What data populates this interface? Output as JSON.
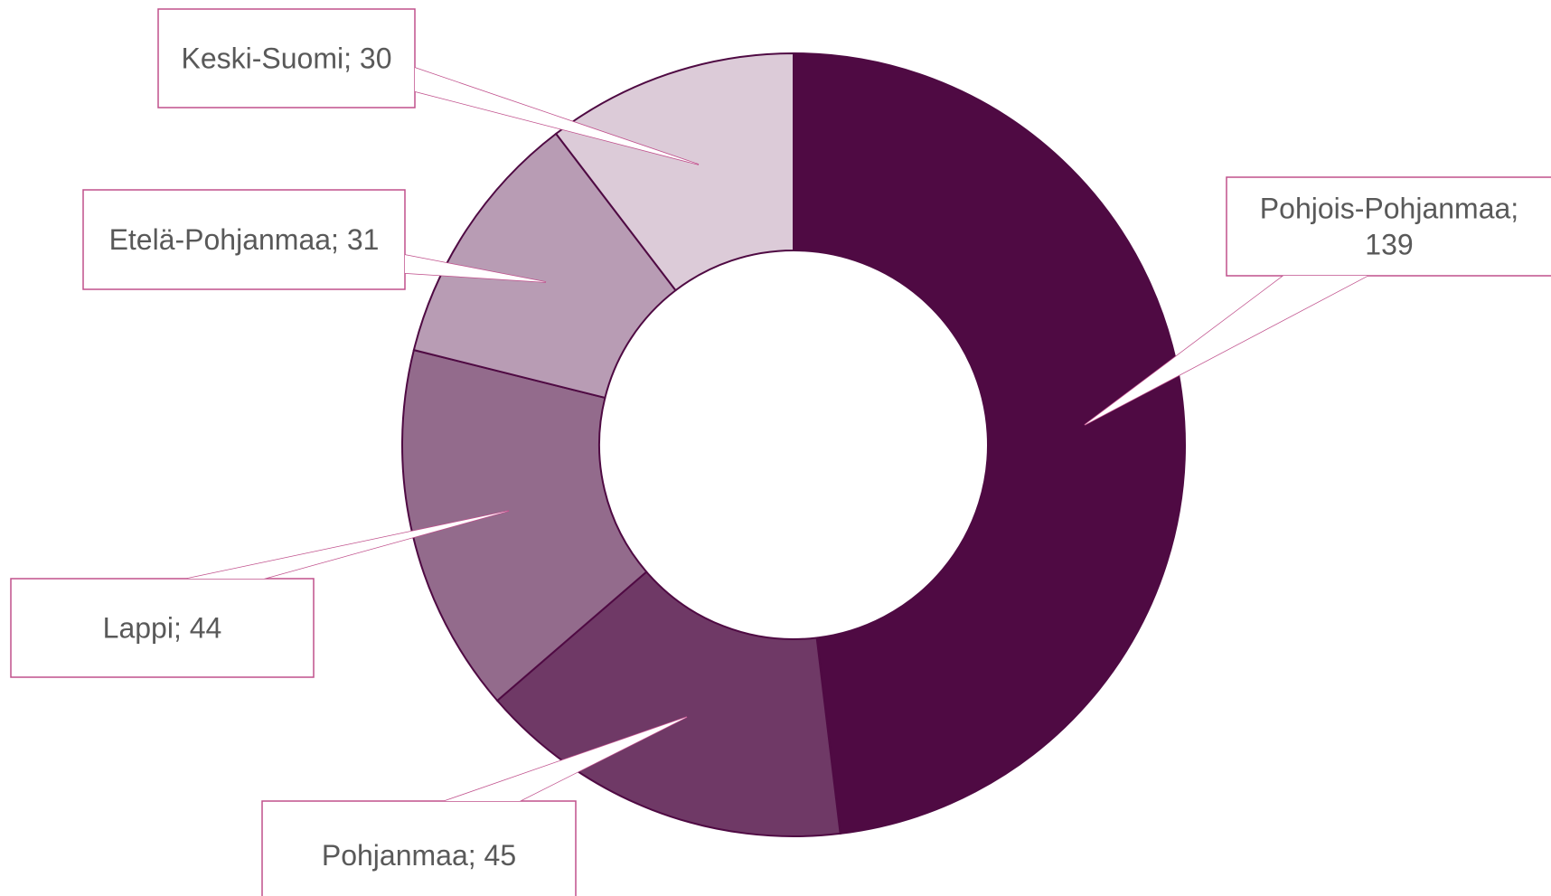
{
  "chart_data": {
    "type": "pie",
    "variant": "doughnut",
    "title": "",
    "slices": [
      {
        "name": "Pohjois-Pohjanmaa",
        "value": 139,
        "color": "#4F0A43",
        "label_lines": [
          "Pohjois-Pohjanmaa;",
          "139"
        ]
      },
      {
        "name": "Pohjanmaa",
        "value": 45,
        "color": "#6F3966",
        "label_lines": [
          "Pohjanmaa; 45"
        ]
      },
      {
        "name": "Lappi",
        "value": 44,
        "color": "#936B8C",
        "label_lines": [
          "Lappi; 44"
        ]
      },
      {
        "name": "Etelä-Pohjanmaa",
        "value": 31,
        "color": "#B89CB4",
        "label_lines": [
          "Etelä-Pohjanmaa; 31"
        ]
      },
      {
        "name": "Keski-Suomi",
        "value": 30,
        "color": "#DCCBD8",
        "label_lines": [
          "Keski-Suomi; 30"
        ]
      }
    ],
    "start_angle": "12 o'clock",
    "direction": "clockwise",
    "legend": "none",
    "data_labels": "callouts",
    "callout_border_color": "#C0508C",
    "slice_border_color": "#4F0A43"
  }
}
